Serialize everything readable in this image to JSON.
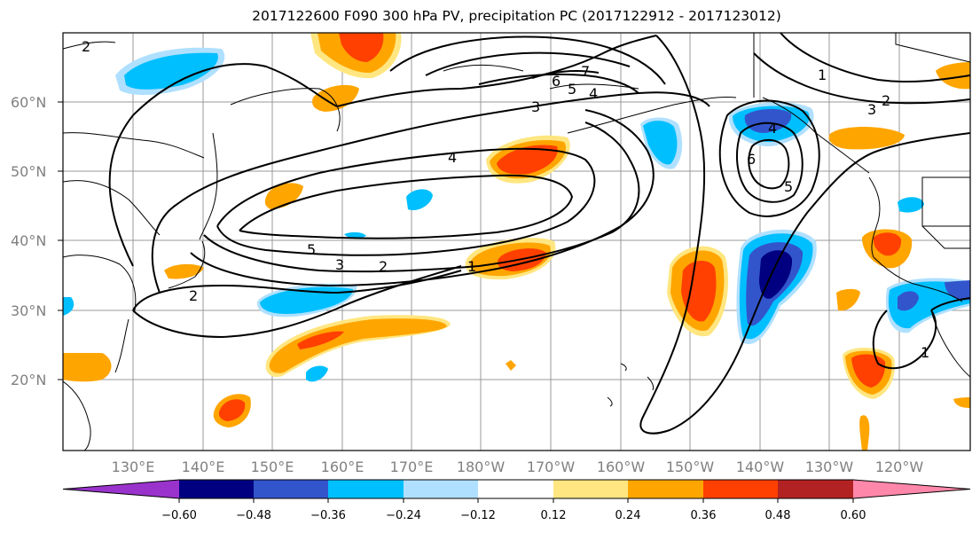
{
  "title": "2017122600 F090 300 hPa PV, precipitation PC (2017122912 - 2017123012)",
  "lat_labels": [
    "60°N",
    "50°N",
    "40°N",
    "30°N",
    "20°N"
  ],
  "lon_labels": [
    "130°E",
    "140°E",
    "150°E",
    "160°E",
    "170°E",
    "180°W",
    "170°W",
    "160°W",
    "150°W",
    "140°W",
    "130°W",
    "120°W"
  ],
  "colorbar": {
    "tick_labels": [
      "−0.60",
      "−0.48",
      "−0.36",
      "−0.24",
      "−0.12",
      "0.12",
      "0.24",
      "0.36",
      "0.48",
      "0.60"
    ],
    "colors": [
      "#9933cc",
      "#000080",
      "#3355cc",
      "#00bfff",
      "#b0e0ff",
      "#ffffff",
      "#ffe680",
      "#ffa500",
      "#ff4000",
      "#b22222",
      "#ff88aa"
    ]
  },
  "contour_labels": [
    "2",
    "7",
    "6",
    "5",
    "4",
    "3",
    "1",
    "2",
    "3",
    "4",
    "6",
    "5",
    "4",
    "5",
    "3",
    "2",
    "1",
    "2",
    "1"
  ]
}
